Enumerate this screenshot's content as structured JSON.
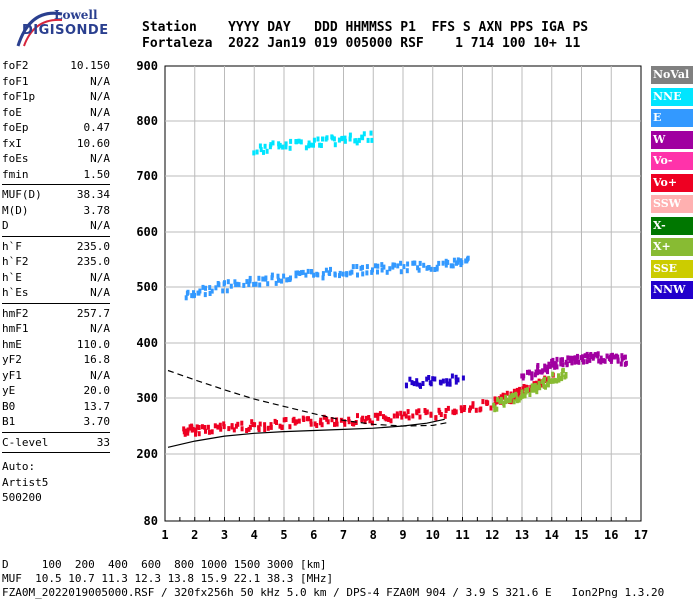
{
  "logo": {
    "line1": "Lowell",
    "line2": "DIGISONDE"
  },
  "header": {
    "line1": "Station    YYYY DAY   DDD HHMMSS P1  FFS S AXN PPS IGA PS",
    "line2": "Fortaleza  2022 Jan19 019 005000 RSF    1 714 100 10+ 11"
  },
  "params": [
    {
      "group": [
        {
          "name": "foF2",
          "value": "10.150"
        },
        {
          "name": "foF1",
          "value": "N/A"
        },
        {
          "name": "foF1p",
          "value": "N/A"
        },
        {
          "name": "foE",
          "value": "N/A"
        },
        {
          "name": "foEp",
          "value": "0.47"
        },
        {
          "name": "fxI",
          "value": "10.60"
        },
        {
          "name": "foEs",
          "value": "N/A"
        },
        {
          "name": "fmin",
          "value": "1.50"
        }
      ]
    },
    {
      "group": [
        {
          "name": "MUF(D)",
          "value": "38.34"
        },
        {
          "name": "M(D)",
          "value": "3.78"
        },
        {
          "name": "D",
          "value": "N/A"
        }
      ]
    },
    {
      "group": [
        {
          "name": "h`F",
          "value": "235.0"
        },
        {
          "name": "h`F2",
          "value": "235.0"
        },
        {
          "name": "h`E",
          "value": "N/A"
        },
        {
          "name": "h`Es",
          "value": "N/A"
        }
      ]
    },
    {
      "group": [
        {
          "name": "hmF2",
          "value": "257.7"
        },
        {
          "name": "hmF1",
          "value": "N/A"
        },
        {
          "name": "hmE",
          "value": "110.0"
        },
        {
          "name": "yF2",
          "value": "16.8"
        },
        {
          "name": "yF1",
          "value": "N/A"
        },
        {
          "name": "yE",
          "value": "20.0"
        },
        {
          "name": "B0",
          "value": "13.7"
        },
        {
          "name": "B1",
          "value": "3.70"
        }
      ]
    },
    {
      "group": [
        {
          "name": "C-level",
          "value": "33"
        }
      ]
    }
  ],
  "auto": {
    "line1": "Auto:",
    "line2": "Artist5",
    "line3": "500200"
  },
  "footer": {
    "line1": "D     100  200  400  600  800 1000 1500 3000 [km]",
    "line2": "MUF  10.5 10.7 11.3 12.3 13.8 15.9 22.1 38.3 [MHz]",
    "line3": "FZA0M_2022019005000.RSF / 320fx256h 50 kHz 5.0 km / DPS-4 FZA0M 904 / 3.9 S 321.6 E   Ion2Png 1.3.20"
  },
  "legend": [
    {
      "label": "NoVal",
      "color": "#808080"
    },
    {
      "label": "NNE",
      "color": "#00e5ff"
    },
    {
      "label": "E",
      "color": "#3399ff"
    },
    {
      "label": "W",
      "color": "#a000a0"
    },
    {
      "label": "Vo-",
      "color": "#ff33aa"
    },
    {
      "label": "Vo+",
      "color": "#ee0022"
    },
    {
      "label": "SSW",
      "color": "#ffb0b0"
    },
    {
      "label": "X-",
      "color": "#007700"
    },
    {
      "label": "X+",
      "color": "#88bb33"
    },
    {
      "label": "SSE",
      "color": "#cccc00"
    },
    {
      "label": "NNW",
      "color": "#2200cc"
    }
  ],
  "chart_data": {
    "type": "scatter",
    "xlim": [
      1,
      17
    ],
    "ylim": [
      80,
      900
    ],
    "x_ticks": [
      1,
      2,
      3,
      4,
      5,
      6,
      7,
      8,
      9,
      10,
      11,
      12,
      13,
      14,
      15,
      16,
      17
    ],
    "y_ticks": [
      80,
      200,
      300,
      400,
      500,
      600,
      700,
      800,
      900
    ],
    "grid": true,
    "legend_position": "right",
    "traces": [
      {
        "name": "F2 trace (Vo+)",
        "color": "#ee0022",
        "points": [
          [
            1.6,
            245
          ],
          [
            2,
            248
          ],
          [
            3,
            252
          ],
          [
            4,
            255
          ],
          [
            5,
            258
          ],
          [
            6,
            262
          ],
          [
            7,
            265
          ],
          [
            8,
            268
          ],
          [
            9,
            272
          ],
          [
            10,
            276
          ],
          [
            11,
            285
          ],
          [
            12,
            295
          ],
          [
            12.5,
            305
          ],
          [
            13,
            318
          ],
          [
            13.5,
            330
          ],
          [
            14,
            340
          ]
        ]
      },
      {
        "name": "Second hop (E)",
        "color": "#3399ff",
        "points": [
          [
            1.6,
            490
          ],
          [
            2.5,
            500
          ],
          [
            3.5,
            510
          ],
          [
            4.5,
            518
          ],
          [
            5.5,
            525
          ],
          [
            6.5,
            530
          ],
          [
            7.5,
            535
          ],
          [
            8.5,
            538
          ],
          [
            9.5,
            542
          ],
          [
            10.5,
            546
          ],
          [
            11.2,
            552
          ]
        ]
      },
      {
        "name": "X+ trace",
        "color": "#88bb33",
        "points": [
          [
            12,
            290
          ],
          [
            12.5,
            300
          ],
          [
            13,
            312
          ],
          [
            13.5,
            325
          ],
          [
            14,
            340
          ],
          [
            14.5,
            352
          ]
        ]
      },
      {
        "name": "High (W)",
        "color": "#a000a0",
        "points": [
          [
            13,
            340
          ],
          [
            13.5,
            355
          ],
          [
            14,
            365
          ],
          [
            14.5,
            372
          ],
          [
            15,
            375
          ],
          [
            15.5,
            378
          ],
          [
            16,
            375
          ],
          [
            16.5,
            372
          ]
        ]
      },
      {
        "name": "Slanted (NNW)",
        "color": "#2200cc",
        "points": [
          [
            9,
            330
          ],
          [
            10,
            335
          ],
          [
            11,
            340
          ]
        ]
      },
      {
        "name": "Upper (NNE)",
        "color": "#00e5ff",
        "points": [
          [
            4,
            752
          ],
          [
            5,
            760
          ],
          [
            6,
            765
          ],
          [
            7,
            770
          ],
          [
            8,
            775
          ]
        ]
      }
    ],
    "profile": {
      "color": "#000",
      "points": [
        [
          1.1,
          212
        ],
        [
          2,
          223
        ],
        [
          3,
          232
        ],
        [
          4,
          237
        ],
        [
          5,
          240
        ],
        [
          6,
          242
        ],
        [
          7,
          244
        ],
        [
          8,
          246
        ],
        [
          9,
          250
        ],
        [
          9.8,
          255
        ],
        [
          10.4,
          262
        ]
      ]
    },
    "model_curve": {
      "color": "#000",
      "points": [
        [
          1.1,
          350
        ],
        [
          2,
          333
        ],
        [
          3,
          315
        ],
        [
          4,
          298
        ],
        [
          5,
          285
        ],
        [
          6,
          272
        ],
        [
          7,
          260
        ],
        [
          8,
          253
        ],
        [
          9,
          250
        ],
        [
          10,
          251
        ],
        [
          10.5,
          256
        ]
      ]
    }
  }
}
